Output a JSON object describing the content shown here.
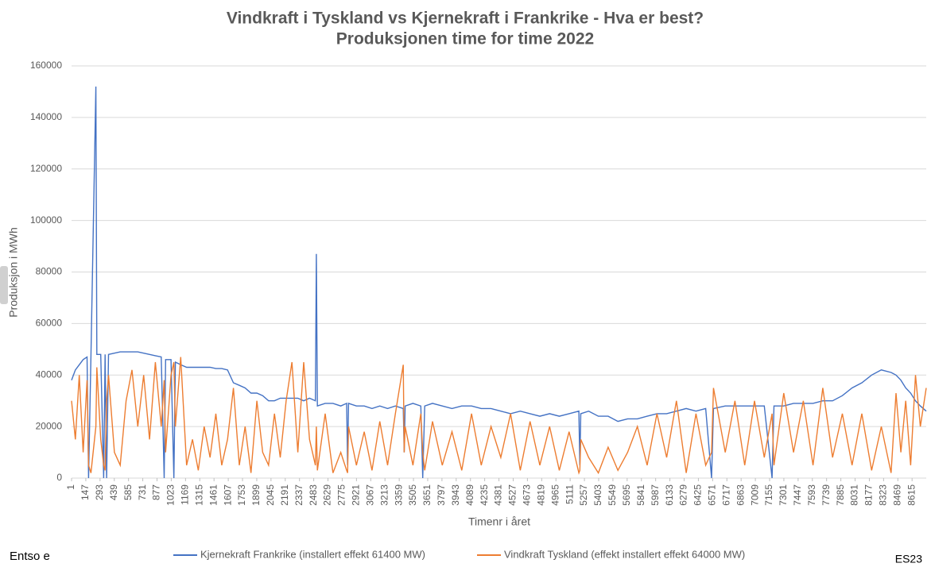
{
  "chart_data": {
    "type": "line",
    "title": "Vindkraft i Tyskland vs Kjernekraft i Frankrike - Hva er best?",
    "subtitle": "Produksjonen time for time 2022",
    "x_label": "Timenr i året",
    "y_label": "Produksjon i MWh",
    "source": "Entso e",
    "note": "ES23",
    "xlim": [
      1,
      8760
    ],
    "ylim": [
      0,
      160000
    ],
    "yticks": [
      0,
      20000,
      40000,
      60000,
      80000,
      100000,
      120000,
      140000,
      160000
    ],
    "xticks": [
      1,
      147,
      293,
      439,
      585,
      731,
      877,
      1023,
      1169,
      1315,
      1461,
      1607,
      1753,
      1899,
      2045,
      2191,
      2337,
      2483,
      2629,
      2775,
      2921,
      3067,
      3213,
      3359,
      3505,
      3651,
      3797,
      3943,
      4089,
      4235,
      4381,
      4527,
      4673,
      4819,
      4965,
      5111,
      5257,
      5403,
      5549,
      5695,
      5841,
      5987,
      6133,
      6279,
      6425,
      6571,
      6717,
      6863,
      7009,
      7155,
      7301,
      7447,
      7593,
      7739,
      7885,
      8031,
      8177,
      8323,
      8469,
      8615
    ],
    "grid": true,
    "legend": "bottom",
    "x": [
      1,
      40,
      80,
      120,
      160,
      175,
      200,
      250,
      260,
      300,
      330,
      345,
      360,
      380,
      440,
      500,
      560,
      620,
      680,
      740,
      800,
      860,
      920,
      950,
      965,
      1020,
      1050,
      1065,
      1120,
      1180,
      1240,
      1300,
      1360,
      1420,
      1480,
      1540,
      1600,
      1660,
      1720,
      1780,
      1840,
      1900,
      1960,
      2020,
      2080,
      2140,
      2200,
      2260,
      2320,
      2380,
      2440,
      2500,
      2510,
      2520,
      2600,
      2680,
      2760,
      2820,
      2830,
      2840,
      2920,
      3000,
      3080,
      3160,
      3240,
      3320,
      3400,
      3410,
      3420,
      3500,
      3580,
      3600,
      3620,
      3700,
      3800,
      3900,
      4000,
      4100,
      4200,
      4300,
      4400,
      4500,
      4600,
      4700,
      4800,
      4900,
      5000,
      5100,
      5200,
      5210,
      5220,
      5300,
      5400,
      5500,
      5600,
      5700,
      5800,
      5900,
      6000,
      6100,
      6200,
      6300,
      6400,
      6500,
      6560,
      6580,
      6700,
      6800,
      6900,
      7000,
      7100,
      7180,
      7200,
      7300,
      7400,
      7500,
      7600,
      7700,
      7800,
      7900,
      8000,
      8100,
      8200,
      8300,
      8400,
      8450,
      8500,
      8550,
      8600,
      8650,
      8700,
      8760
    ],
    "series": [
      {
        "name": "Kjernekraft Frankrike (installert effekt 61400 MW)",
        "color": "#4472c4",
        "values": [
          38000,
          42000,
          44000,
          46000,
          47000,
          0,
          47500,
          152000,
          48000,
          48000,
          0,
          48000,
          0,
          48000,
          48500,
          49000,
          49000,
          49000,
          49000,
          48500,
          48000,
          47500,
          47000,
          0,
          46000,
          46000,
          0,
          45000,
          44000,
          43000,
          43000,
          43000,
          43000,
          43000,
          42500,
          42500,
          42000,
          37000,
          36000,
          35000,
          33000,
          33000,
          32000,
          30000,
          30000,
          31000,
          31000,
          31000,
          31000,
          30000,
          31000,
          30000,
          87000,
          28000,
          29000,
          29000,
          28000,
          29000,
          5000,
          29000,
          28000,
          28000,
          27000,
          28000,
          27000,
          28000,
          27000,
          10000,
          28000,
          29000,
          28000,
          0,
          28000,
          29000,
          28000,
          27000,
          28000,
          28000,
          27000,
          27000,
          26000,
          25000,
          26000,
          25000,
          24000,
          25000,
          24000,
          25000,
          26000,
          5000,
          25000,
          26000,
          24000,
          24000,
          22000,
          23000,
          23000,
          24000,
          25000,
          25000,
          26000,
          27000,
          26000,
          27000,
          0,
          27000,
          28000,
          28000,
          28000,
          28000,
          28000,
          0,
          28000,
          28000,
          29000,
          29000,
          29000,
          30000,
          30000,
          32000,
          35000,
          37000,
          40000,
          42000,
          41000,
          40000,
          38000,
          35000,
          33000,
          30000,
          28000,
          26000
        ]
      },
      {
        "name": "Vindkraft Tyskland (effekt installert effekt 64000 MW)",
        "color": "#ed7d31",
        "values": [
          30000,
          15000,
          40000,
          10000,
          38000,
          5000,
          2000,
          20000,
          43000,
          15000,
          5000,
          3000,
          30000,
          40000,
          10000,
          5000,
          30000,
          42000,
          20000,
          40000,
          15000,
          45000,
          20000,
          38000,
          10000,
          40000,
          45000,
          20000,
          47000,
          5000,
          15000,
          3000,
          20000,
          8000,
          25000,
          5000,
          15000,
          35000,
          5000,
          20000,
          2000,
          30000,
          10000,
          5000,
          25000,
          8000,
          30000,
          45000,
          10000,
          45000,
          15000,
          5000,
          20000,
          3000,
          25000,
          2000,
          10000,
          3000,
          2000,
          20000,
          5000,
          18000,
          3000,
          22000,
          5000,
          25000,
          44000,
          10000,
          20000,
          5000,
          25000,
          10000,
          3000,
          22000,
          5000,
          18000,
          3000,
          25000,
          5000,
          20000,
          8000,
          25000,
          3000,
          22000,
          5000,
          20000,
          3000,
          18000,
          2000,
          3000,
          15000,
          8000,
          2000,
          12000,
          3000,
          10000,
          20000,
          5000,
          25000,
          8000,
          30000,
          2000,
          25000,
          5000,
          10000,
          35000,
          10000,
          30000,
          5000,
          30000,
          8000,
          25000,
          5000,
          33000,
          10000,
          30000,
          5000,
          35000,
          8000,
          25000,
          5000,
          25000,
          3000,
          20000,
          2000,
          33000,
          10000,
          30000,
          5000,
          40000,
          20000,
          35000
        ]
      }
    ]
  }
}
